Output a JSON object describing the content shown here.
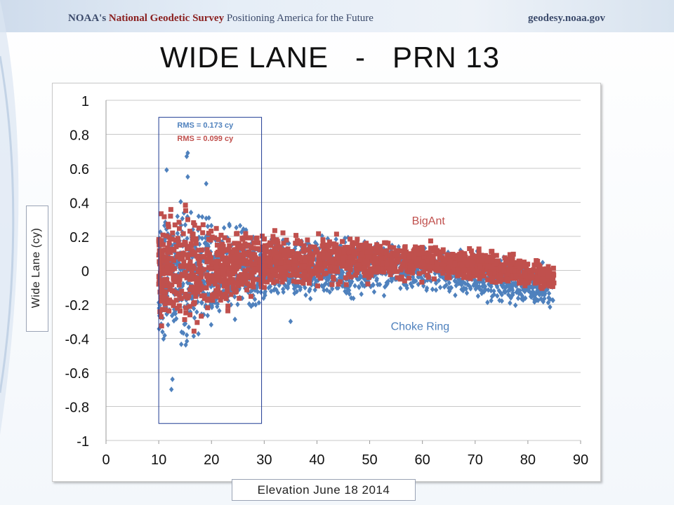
{
  "header": {
    "agency": "NOAA's",
    "org": "National Geodetic Survey",
    "tagline": "Positioning America for the Future",
    "url": "geodesy.noaa.gov"
  },
  "slide_title": "WIDE LANE   -   PRN 13",
  "colors": {
    "choke_ring": "#4f81bd",
    "bigant": "#c0504d",
    "rms_box": "#1f3a93",
    "grid": "#c8c8c8"
  },
  "chart_data": {
    "type": "scatter",
    "title": "",
    "xlabel": "Elevation  June 18 2014",
    "ylabel": "Wide Lane (cy)",
    "xlim": [
      0,
      90
    ],
    "ylim": [
      -1,
      1
    ],
    "xticks": [
      "0",
      "10",
      "20",
      "30",
      "40",
      "50",
      "60",
      "70",
      "80",
      "90"
    ],
    "yticks": [
      "1",
      "0.8",
      "0.6",
      "0.4",
      "0.2",
      "0",
      "-0.2",
      "-0.4",
      "-0.6",
      "-0.8",
      "-1"
    ],
    "grid": "horizontal",
    "series": [
      {
        "name": "Choke Ring",
        "marker": "diamond",
        "color": "#4f81bd",
        "envelope": [
          {
            "x": 10,
            "low": -0.46,
            "high": 0.35
          },
          {
            "x": 15,
            "low": -0.47,
            "high": 0.45
          },
          {
            "x": 20,
            "low": -0.35,
            "high": 0.32
          },
          {
            "x": 25,
            "low": -0.28,
            "high": 0.28
          },
          {
            "x": 30,
            "low": -0.2,
            "high": 0.2
          },
          {
            "x": 40,
            "low": -0.18,
            "high": 0.19
          },
          {
            "x": 50,
            "low": -0.14,
            "high": 0.17
          },
          {
            "x": 60,
            "low": -0.12,
            "high": 0.14
          },
          {
            "x": 70,
            "low": -0.16,
            "high": 0.12
          },
          {
            "x": 80,
            "low": -0.23,
            "high": 0.06
          },
          {
            "x": 85,
            "low": -0.26,
            "high": 0.03
          }
        ],
        "outliers": [
          {
            "x": 12.4,
            "y": -0.7
          },
          {
            "x": 12.6,
            "y": -0.64
          },
          {
            "x": 15.5,
            "y": 0.69
          },
          {
            "x": 15.3,
            "y": 0.67
          },
          {
            "x": 11.5,
            "y": 0.59
          },
          {
            "x": 19.0,
            "y": 0.51
          },
          {
            "x": 15.5,
            "y": 0.55
          },
          {
            "x": 35.0,
            "y": -0.3
          }
        ]
      },
      {
        "name": "BigAnt",
        "marker": "square",
        "color": "#c0504d",
        "envelope": [
          {
            "x": 10,
            "low": -0.3,
            "high": 0.3
          },
          {
            "x": 15,
            "low": -0.4,
            "high": 0.37
          },
          {
            "x": 20,
            "low": -0.28,
            "high": 0.29
          },
          {
            "x": 25,
            "low": -0.22,
            "high": 0.24
          },
          {
            "x": 30,
            "low": -0.12,
            "high": 0.22
          },
          {
            "x": 40,
            "low": -0.09,
            "high": 0.22
          },
          {
            "x": 50,
            "low": -0.06,
            "high": 0.18
          },
          {
            "x": 60,
            "low": -0.05,
            "high": 0.17
          },
          {
            "x": 70,
            "low": -0.07,
            "high": 0.13
          },
          {
            "x": 80,
            "low": -0.1,
            "high": 0.07
          },
          {
            "x": 85,
            "low": -0.13,
            "high": 0.03
          }
        ]
      }
    ],
    "annotations": {
      "rms_choke_ring": "RMS = 0.173 cy",
      "rms_bigant": "RMS = 0.099 cy",
      "rms_box_xrange": [
        10,
        29.5
      ],
      "rms_box_yrange": [
        -0.9,
        0.9
      ],
      "label_bigant": "BigAnt",
      "label_choke_ring": "Choke Ring"
    }
  }
}
